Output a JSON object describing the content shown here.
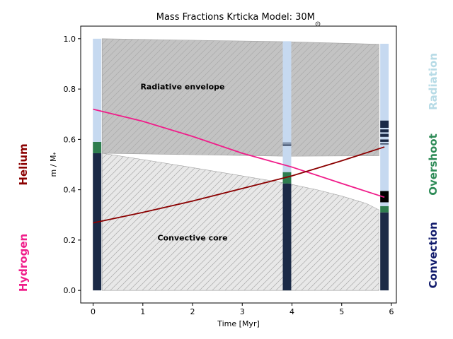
{
  "chart_data": {
    "type": "area",
    "title": "Mass Fractions Krticka Model: 30M",
    "title_symbol": "⊙",
    "xlabel": "Time [Myr]",
    "ylabel": "m / M",
    "ylabel_symbol": "*",
    "xlim": [
      -0.25,
      6.1
    ],
    "ylim": [
      -0.05,
      1.05
    ],
    "xticks": [
      0,
      1,
      2,
      3,
      4,
      5,
      6
    ],
    "yticks": [
      0.0,
      0.2,
      0.4,
      0.6,
      0.8,
      1.0
    ],
    "grid": false,
    "colors": {
      "radiation": "#c6d9f0",
      "overshoot": "#2e7d4f",
      "convection": "#1b2a47",
      "hydrogen": "#f01d8a",
      "helium": "#8b0000",
      "envelope_fill": "#c0c0c0",
      "core_fill": "#e6e6e6"
    },
    "regions": [
      {
        "name": "Radiative envelope",
        "label_at": [
          1.8,
          0.81
        ],
        "top": {
          "x": [
            0.18,
            3.9,
            5.75
          ],
          "y": [
            1.0,
            0.988,
            0.978
          ]
        },
        "bottom": {
          "x": [
            0.18,
            3.9,
            5.75
          ],
          "y": [
            0.545,
            0.533,
            0.535
          ]
        }
      },
      {
        "name": "Convective core",
        "label_at": [
          2.0,
          0.21
        ],
        "top": {
          "x": [
            0.18,
            1.0,
            2.0,
            3.0,
            3.9,
            4.5,
            5.0,
            5.5,
            5.75
          ],
          "y": [
            0.545,
            0.52,
            0.488,
            0.455,
            0.425,
            0.4,
            0.375,
            0.345,
            0.32
          ]
        },
        "bottom": {
          "x": [
            0.18,
            5.75
          ],
          "y": [
            0.0,
            0.0
          ]
        }
      }
    ],
    "columns": [
      {
        "time": 0.08,
        "width": 0.17,
        "segments": [
          {
            "type": "convection",
            "from": 0.0,
            "to": 0.545
          },
          {
            "type": "overshoot",
            "from": 0.545,
            "to": 0.59
          },
          {
            "type": "radiation",
            "from": 0.59,
            "to": 1.0
          }
        ]
      },
      {
        "time": 3.9,
        "width": 0.17,
        "segments": [
          {
            "type": "convection",
            "from": 0.0,
            "to": 0.425
          },
          {
            "type": "overshoot",
            "from": 0.425,
            "to": 0.47
          },
          {
            "type": "radiation",
            "from": 0.47,
            "to": 0.575
          },
          {
            "type": "convection",
            "from": 0.575,
            "to": 0.58
          },
          {
            "type": "radiation",
            "from": 0.58,
            "to": 0.584
          },
          {
            "type": "convection",
            "from": 0.584,
            "to": 0.587
          },
          {
            "type": "radiation",
            "from": 0.587,
            "to": 0.99
          }
        ]
      },
      {
        "time": 5.86,
        "width": 0.17,
        "segments": [
          {
            "type": "convection",
            "from": 0.0,
            "to": 0.31
          },
          {
            "type": "overshoot",
            "from": 0.31,
            "to": 0.335
          },
          {
            "type": "radiation",
            "from": 0.335,
            "to": 0.35
          },
          {
            "type": "black",
            "from": 0.35,
            "to": 0.395
          },
          {
            "type": "radiation",
            "from": 0.395,
            "to": 0.58
          },
          {
            "type": "convection",
            "from": 0.58,
            "to": 0.584
          },
          {
            "type": "radiation",
            "from": 0.584,
            "to": 0.59
          },
          {
            "type": "convection",
            "from": 0.59,
            "to": 0.6
          },
          {
            "type": "radiation",
            "from": 0.6,
            "to": 0.61
          },
          {
            "type": "convection",
            "from": 0.61,
            "to": 0.622
          },
          {
            "type": "radiation",
            "from": 0.622,
            "to": 0.628
          },
          {
            "type": "convection",
            "from": 0.628,
            "to": 0.64
          },
          {
            "type": "radiation",
            "from": 0.64,
            "to": 0.646
          },
          {
            "type": "convection",
            "from": 0.646,
            "to": 0.675
          },
          {
            "type": "radiation",
            "from": 0.675,
            "to": 0.98
          }
        ]
      }
    ],
    "series": [
      {
        "key": "hydrogen",
        "x": [
          0.0,
          1.0,
          2.0,
          3.0,
          4.0,
          5.0,
          5.86
        ],
        "y": [
          0.72,
          0.672,
          0.612,
          0.545,
          0.49,
          0.425,
          0.37
        ]
      },
      {
        "key": "helium",
        "x": [
          0.0,
          1.0,
          2.0,
          3.0,
          4.0,
          5.0,
          5.86
        ],
        "y": [
          0.268,
          0.31,
          0.355,
          0.405,
          0.455,
          0.515,
          0.57
        ]
      }
    ],
    "side_labels": [
      {
        "text": "Helium",
        "side": "left",
        "center_y": 0.5,
        "color": "#8b0000"
      },
      {
        "text": "Hydrogen",
        "side": "left",
        "center_y": 0.11,
        "color": "#f01d8a"
      },
      {
        "text": "Radiation",
        "side": "right",
        "center_y": 0.83,
        "color": "#b7dbe6"
      },
      {
        "text": "Overshoot",
        "side": "right",
        "center_y": 0.5,
        "color": "#2e8b57"
      },
      {
        "text": "Convection",
        "side": "right",
        "center_y": 0.14,
        "color": "#101a6b"
      }
    ]
  }
}
